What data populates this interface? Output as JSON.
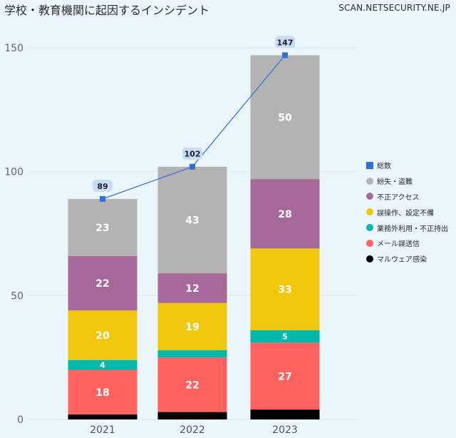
{
  "title": "学校・教育機関に起因するインシデント",
  "source": "SCAN.NETSECURITY.NE.JP",
  "chart_data": {
    "type": "bar",
    "stacked": true,
    "categories": [
      "2021",
      "2022",
      "2023"
    ],
    "series": [
      {
        "name": "マルウェア感染",
        "values": [
          2,
          3,
          4
        ],
        "color": "#000000",
        "label_color": "#ffffff"
      },
      {
        "name": "メール誤送信",
        "values": [
          18,
          22,
          27
        ],
        "color": "#fd625e",
        "label_color": "#ffffff"
      },
      {
        "name": "業務外利用・不正持出",
        "values": [
          4,
          3,
          5
        ],
        "color": "#01b8aa",
        "label_color": "#ffffff"
      },
      {
        "name": "誤操作、設定不備",
        "values": [
          20,
          19,
          33
        ],
        "color": "#f2c80f",
        "label_color": "#ffffff"
      },
      {
        "name": "不正アクセス",
        "values": [
          22,
          12,
          28
        ],
        "color": "#a66999",
        "label_color": "#ffffff"
      },
      {
        "name": "紛失・盗難",
        "values": [
          23,
          43,
          50
        ],
        "color": "#b3b3b3",
        "label_color": "#ffffff"
      }
    ],
    "visible_labels": [
      [
        false,
        false,
        false
      ],
      [
        true,
        true,
        true
      ],
      [
        true,
        false,
        true
      ],
      [
        true,
        true,
        true
      ],
      [
        true,
        true,
        true
      ],
      [
        true,
        true,
        true
      ]
    ],
    "total": {
      "name": "総数",
      "values": [
        89,
        102,
        147
      ],
      "color": "#2f6fd6",
      "label_bg": "#c6dcf7"
    },
    "legend": [
      "総数",
      "紛失・盗難",
      "不正アクセス",
      "誤操作、設定不備",
      "業務外利用・不正持出",
      "メール誤送信",
      "マルウェア感染"
    ],
    "yticks": [
      0,
      50,
      100,
      150
    ],
    "ylim": [
      0,
      150
    ],
    "gridline_color": "#dfe9ee"
  }
}
